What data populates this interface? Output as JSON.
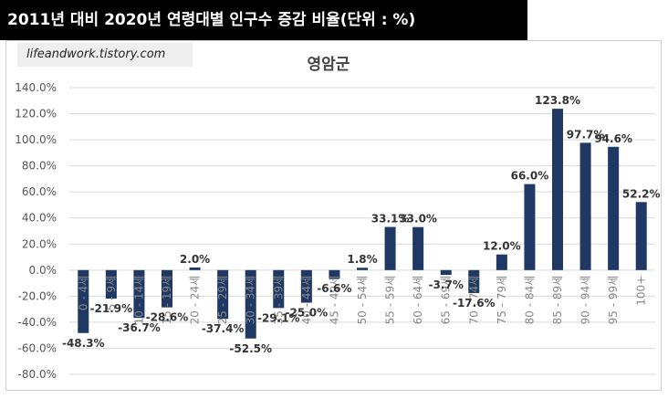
{
  "header": {
    "title": "2011년 대비 2020년 연령대별 인구수 증감 비율(단위 : %)"
  },
  "watermark": {
    "text": "lifeandwork.tistory.com"
  },
  "colors": {
    "bar": "#1f3864",
    "grid": "#d9d9d9"
  },
  "chart_data": {
    "type": "bar",
    "title": "영암군",
    "xlabel": "",
    "ylabel": "",
    "ylim": [
      -80,
      140
    ],
    "yticks": [
      "140.0%",
      "120.0%",
      "100.0%",
      "80.0%",
      "60.0%",
      "40.0%",
      "20.0%",
      "0.0%",
      "-20.0%",
      "-40.0%",
      "-60.0%",
      "-80.0%"
    ],
    "ytick_values": [
      140,
      120,
      100,
      80,
      60,
      40,
      20,
      0,
      -20,
      -40,
      -60,
      -80
    ],
    "grid": true,
    "categories": [
      "0 - 4세",
      "5 - 9세",
      "10 - 14세",
      "15 - 19세",
      "20 - 24세",
      "25 - 29세",
      "30 - 34세",
      "35 - 39세",
      "40 - 44세",
      "45 - 49세",
      "50 - 54세",
      "55 - 59세",
      "60 - 64세",
      "65 - 69세",
      "70 - 74세",
      "75 - 79세",
      "80 - 84세",
      "85 - 89세",
      "90 - 94세",
      "95 - 99세",
      "100+"
    ],
    "values": [
      -48.3,
      -21.9,
      -36.7,
      -28.6,
      2.0,
      -37.4,
      -52.5,
      -29.1,
      -25.0,
      -6.6,
      1.8,
      33.1,
      33.0,
      -3.7,
      -17.6,
      12.0,
      66.0,
      123.8,
      97.7,
      94.6,
      52.2
    ],
    "labels": [
      "-48.3%",
      "-21.9%",
      "-36.7%",
      "-28.6%",
      "2.0%",
      "-37.4%",
      "-52.5%",
      "-29.1%",
      "-25.0%",
      "-6.6%",
      "1.8%",
      "33.1%",
      "33.0%",
      "-3.7%",
      "-17.6%",
      "12.0%",
      "66.0%",
      "123.8%",
      "97.7%",
      "94.6%",
      "52.2%"
    ]
  }
}
